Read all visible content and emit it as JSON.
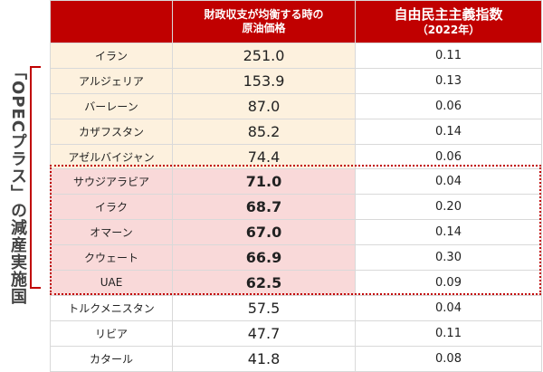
{
  "header": {
    "columns": [
      [
        ""
      ],
      [
        "財政収支が均衡する時の",
        "原油価格"
      ],
      [
        "自由民主主義指数",
        "（2022年）"
      ]
    ]
  },
  "side_label": "「OPECプラス」の減産実施国",
  "table": {
    "rows": [
      [
        "イラン",
        "251.0",
        "0.11"
      ],
      [
        "アルジェリア",
        "153.9",
        "0.13"
      ],
      [
        "バーレーン",
        "87.0",
        "0.06"
      ],
      [
        "カザフスタン",
        "85.2",
        "0.14"
      ],
      [
        "アゼルバイジャン",
        "74.4",
        "0.06"
      ],
      [
        "サウジアラビア",
        "71.0",
        "0.04"
      ],
      [
        "イラク",
        "68.7",
        "0.20"
      ],
      [
        "オマーン",
        "67.0",
        "0.14"
      ],
      [
        "クウェート",
        "66.9",
        "0.30"
      ],
      [
        "UAE",
        "62.5",
        "0.09"
      ],
      [
        "トルクメニスタン",
        "57.5",
        "0.04"
      ],
      [
        "リビア",
        "47.7",
        "0.11"
      ],
      [
        "カタール",
        "41.8",
        "0.08"
      ]
    ]
  }
}
